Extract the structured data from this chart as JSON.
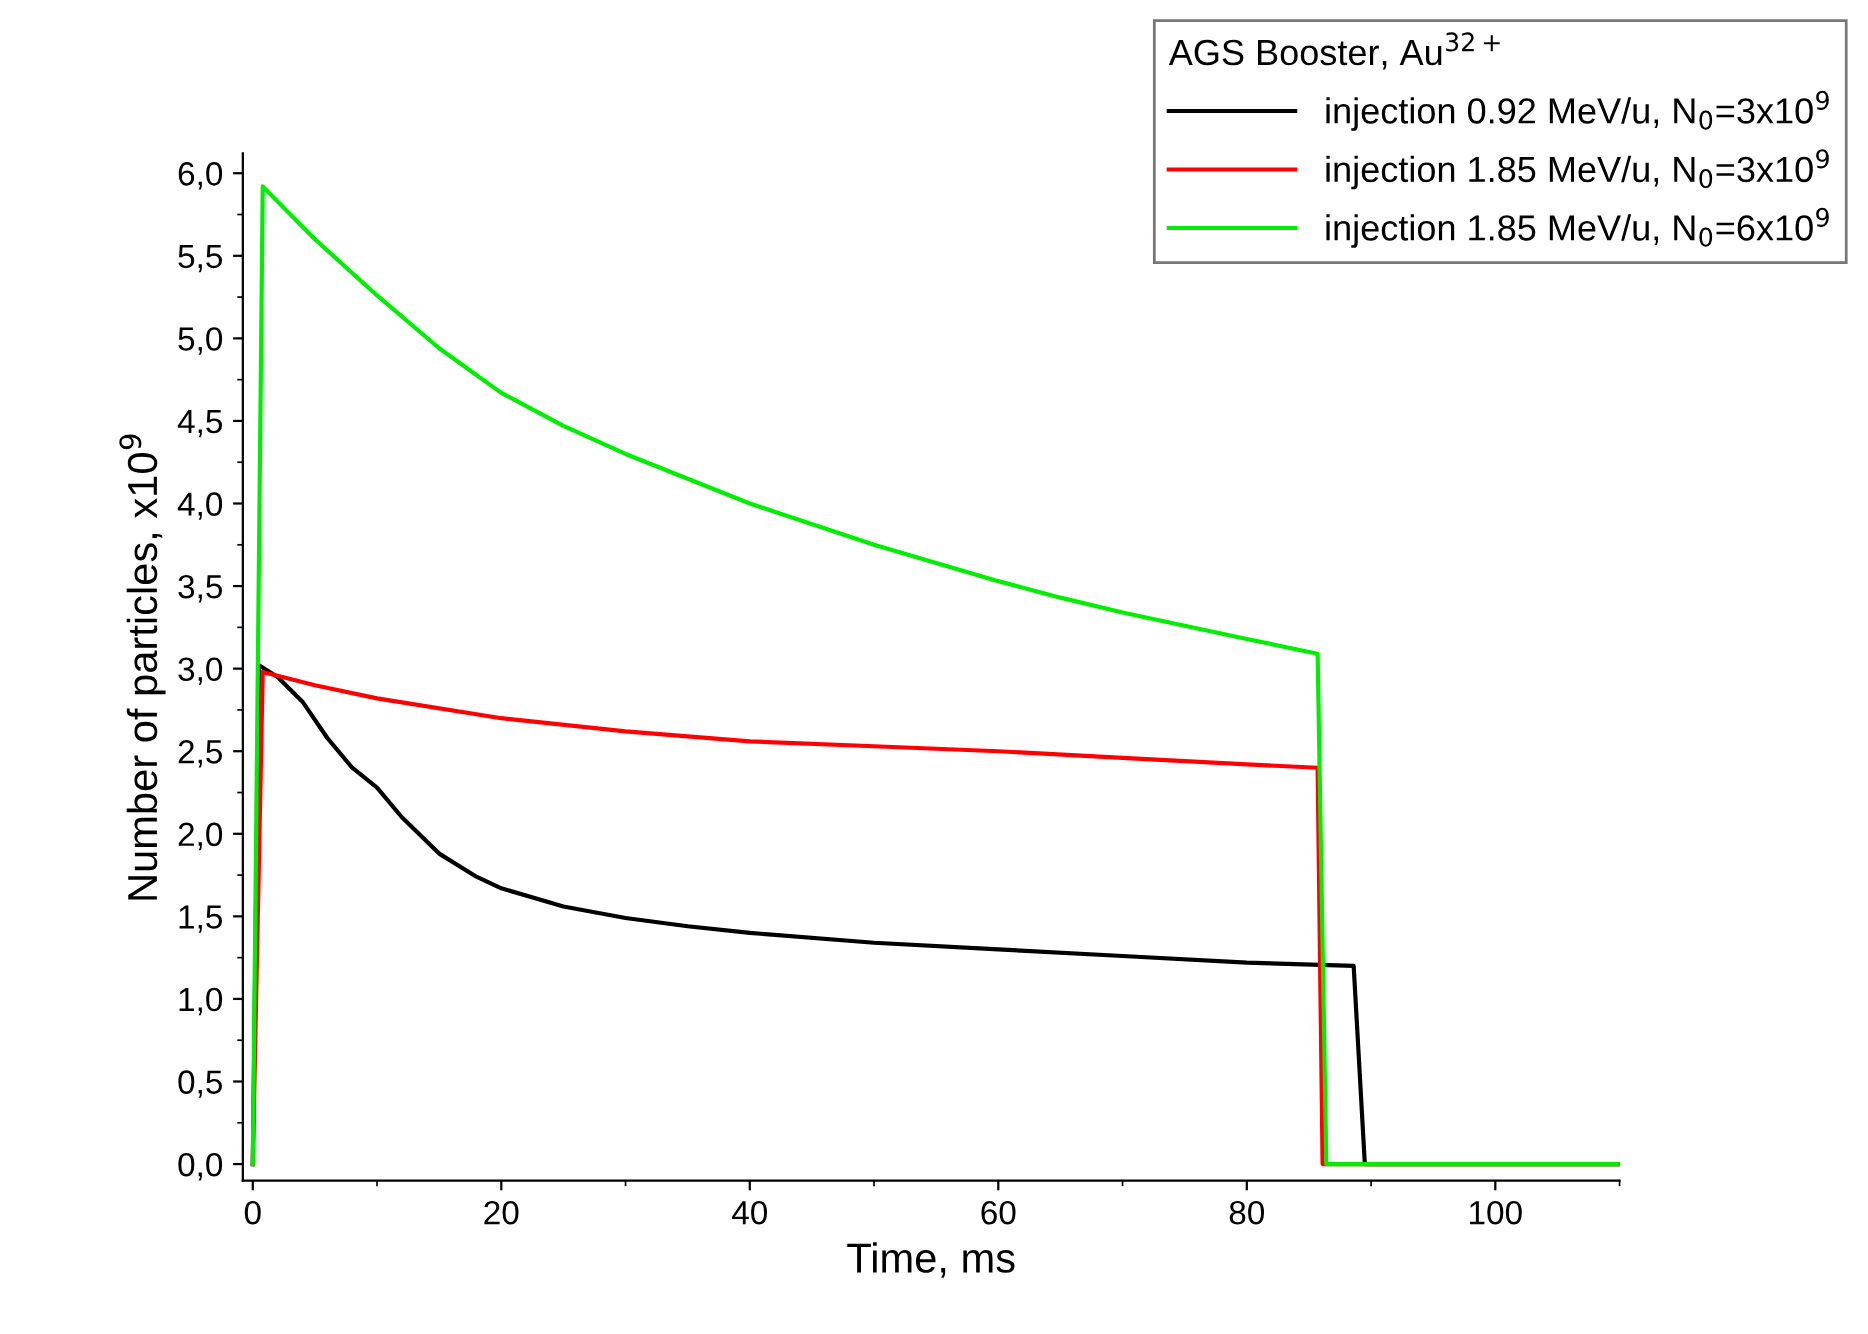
{
  "chart_data": {
    "type": "line",
    "xlabel": "Time, ms",
    "ylabel": "Number of particles, x10$^{9}$",
    "legend_title": "AGS Booster, Au$^{32+}$",
    "xlim": [
      -0.8,
      110
    ],
    "xticks": [
      0,
      20,
      40,
      60,
      80,
      100
    ],
    "ylim": [
      -0.1,
      6.12
    ],
    "yticks": [
      {
        "value": 0,
        "label": "0,0"
      },
      {
        "value": 0.5,
        "label": "0,5"
      },
      {
        "value": 1,
        "label": "1,0"
      },
      {
        "value": 1.5,
        "label": "1,5"
      },
      {
        "value": 2,
        "label": "2,0"
      },
      {
        "value": 2.5,
        "label": "2,5"
      },
      {
        "value": 3,
        "label": "3,0"
      },
      {
        "value": 3.5,
        "label": "3,5"
      },
      {
        "value": 4,
        "label": "4,0"
      },
      {
        "value": 4.5,
        "label": "4,5"
      },
      {
        "value": 5,
        "label": "5,0"
      },
      {
        "value": 5.5,
        "label": "5,5"
      },
      {
        "value": 6,
        "label": "6,0"
      }
    ],
    "grid": false,
    "legend": "top right",
    "marker": "none",
    "line_style": "solid",
    "series": [
      {
        "name": "injection 0.92 MeV/u, N$_{0}$=3x10$^{9}$",
        "color": "#000000",
        "x": [
          0,
          0.5,
          2,
          4,
          6,
          8,
          10,
          12,
          15,
          18,
          20,
          25,
          30,
          35,
          40,
          50,
          60,
          70,
          80,
          88.6,
          89.5,
          110
        ],
        "values": [
          0,
          3.02,
          2.95,
          2.8,
          2.58,
          2.4,
          2.28,
          2.1,
          1.88,
          1.74,
          1.67,
          1.56,
          1.49,
          1.44,
          1.4,
          1.34,
          1.3,
          1.26,
          1.22,
          1.2,
          0,
          0
        ]
      },
      {
        "name": "injection 1.85 MeV/u, N$_{0}$=3x10$^{9}$",
        "color": "#ff0000",
        "x": [
          0,
          0.8,
          5,
          10,
          20,
          30,
          40,
          50,
          60,
          70,
          80,
          85.7,
          86.1,
          110
        ],
        "values": [
          0,
          2.98,
          2.9,
          2.82,
          2.7,
          2.62,
          2.56,
          2.53,
          2.5,
          2.46,
          2.42,
          2.4,
          0,
          0
        ]
      },
      {
        "name": "injection 1.85 MeV/u, N$_{0}$=6x10$^{9}$",
        "color": "#00ee00",
        "x": [
          0,
          0.8,
          5,
          10,
          15,
          20,
          25,
          30,
          40,
          50,
          60,
          65,
          70,
          80,
          85.7,
          86.4,
          110
        ],
        "values": [
          0,
          5.92,
          5.6,
          5.26,
          4.94,
          4.67,
          4.47,
          4.3,
          4.0,
          3.75,
          3.53,
          3.43,
          3.34,
          3.18,
          3.09,
          0,
          0
        ]
      }
    ]
  }
}
